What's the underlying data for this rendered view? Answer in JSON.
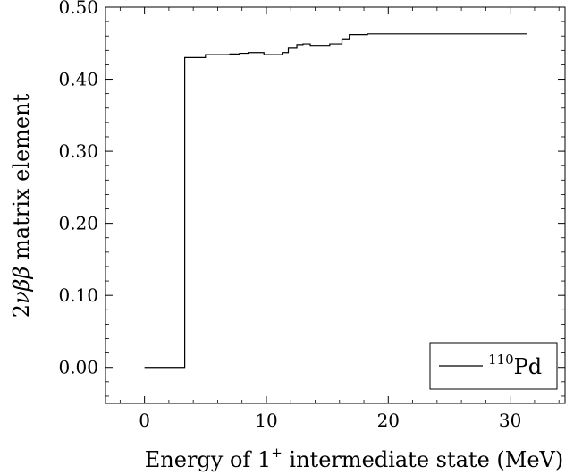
{
  "chart_data": {
    "type": "line",
    "line_style": "step",
    "xlabel": {
      "prefix": "Energy of 1",
      "superscript": "+",
      "suffix": " intermediate state (MeV)"
    },
    "ylabel": {
      "prefix": "2",
      "greek": "νββ",
      "suffix": " matrix element"
    },
    "xlim": [
      -3.2,
      34.5
    ],
    "ylim": [
      -0.05,
      0.5
    ],
    "xticks": [
      0,
      10,
      20,
      30
    ],
    "xtick_labels": [
      "0",
      "10",
      "20",
      "30"
    ],
    "yticks": [
      0,
      0.1,
      0.2,
      0.3,
      0.4,
      0.5
    ],
    "ytick_labels": [
      "0.00",
      "0.10",
      "0.20",
      "0.30",
      "0.40",
      "0.50"
    ],
    "minor_x_step": 2,
    "minor_y_step": 0.02,
    "grid": false,
    "legend_position": "bottom-right",
    "series": [
      {
        "name": "110Pd",
        "legend": {
          "mass": "110",
          "element": "Pd"
        },
        "color": "#000000",
        "x": [
          0,
          3.3,
          5.0,
          7.0,
          7.8,
          8.5,
          9.8,
          11.3,
          11.8,
          12.5,
          13.0,
          13.6,
          15.2,
          16.2,
          16.8,
          18.3,
          31.4
        ],
        "y": [
          0.0,
          0.43,
          0.434,
          0.435,
          0.436,
          0.437,
          0.434,
          0.437,
          0.443,
          0.448,
          0.449,
          0.447,
          0.449,
          0.455,
          0.462,
          0.463,
          0.463
        ]
      }
    ]
  }
}
